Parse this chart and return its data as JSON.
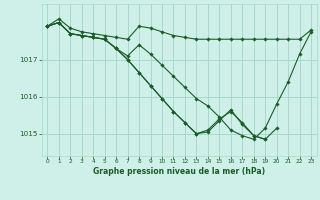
{
  "title": "Graphe pression niveau de la mer (hPa)",
  "bg_color": "#cff0e8",
  "grid_color": "#a8d8cc",
  "line_color": "#1a5c28",
  "marker_color": "#1a5c28",
  "ylim": [
    1014.4,
    1018.5
  ],
  "yticks": [
    1015,
    1016,
    1017
  ],
  "xlim": [
    -0.5,
    23.5
  ],
  "xticks": [
    0,
    1,
    2,
    3,
    4,
    5,
    6,
    7,
    8,
    9,
    10,
    11,
    12,
    13,
    14,
    15,
    16,
    17,
    18,
    19,
    20,
    21,
    22,
    23
  ],
  "series": [
    {
      "x": [
        0,
        1,
        2,
        3,
        4,
        5,
        6,
        7,
        8,
        9,
        10,
        11,
        12,
        13,
        14,
        15,
        16,
        17,
        18,
        19,
        20,
        21,
        22,
        23
      ],
      "y": [
        1017.9,
        1018.1,
        1017.85,
        1017.75,
        1017.7,
        1017.65,
        1017.6,
        1017.55,
        1017.9,
        1017.85,
        1017.75,
        1017.65,
        1017.6,
        1017.55,
        1017.55,
        1017.55,
        1017.55,
        1017.55,
        1017.55,
        1017.55,
        1017.55,
        1017.55,
        1017.55,
        1017.8
      ]
    },
    {
      "x": [
        0,
        1,
        2,
        3,
        4,
        5,
        6,
        7,
        8,
        9,
        10,
        11,
        12,
        13,
        14,
        15,
        16,
        17,
        18,
        19,
        20,
        21,
        22,
        23
      ],
      "y": [
        1017.9,
        1018.0,
        1017.7,
        1017.65,
        1017.6,
        1017.55,
        1017.3,
        1017.1,
        1017.4,
        1017.15,
        1016.85,
        1016.55,
        1016.25,
        1015.95,
        1015.75,
        1015.45,
        1015.1,
        1014.95,
        1014.85,
        1015.15,
        1015.8,
        1016.4,
        1017.15,
        1017.75
      ]
    },
    {
      "x": [
        0,
        1,
        2,
        3,
        4,
        5,
        6,
        7,
        8,
        9,
        10,
        11,
        12,
        13,
        14,
        15,
        16,
        17,
        18,
        19,
        20
      ],
      "y": [
        1017.9,
        1018.0,
        1017.7,
        1017.65,
        1017.6,
        1017.55,
        1017.3,
        1017.0,
        1016.65,
        1016.3,
        1015.95,
        1015.6,
        1015.3,
        1015.0,
        1015.05,
        1015.35,
        1015.65,
        1015.25,
        1014.95,
        1014.85,
        1015.15
      ]
    },
    {
      "x": [
        0,
        1,
        2,
        3,
        4,
        5,
        6,
        7,
        8,
        9,
        10,
        11,
        12,
        13,
        14,
        15,
        16,
        17,
        18,
        19
      ],
      "y": [
        1017.9,
        1018.0,
        1017.7,
        1017.65,
        1017.6,
        1017.55,
        1017.3,
        1017.0,
        1016.65,
        1016.3,
        1015.95,
        1015.6,
        1015.3,
        1015.0,
        1015.1,
        1015.4,
        1015.6,
        1015.3,
        1014.95,
        1014.85
      ]
    }
  ]
}
